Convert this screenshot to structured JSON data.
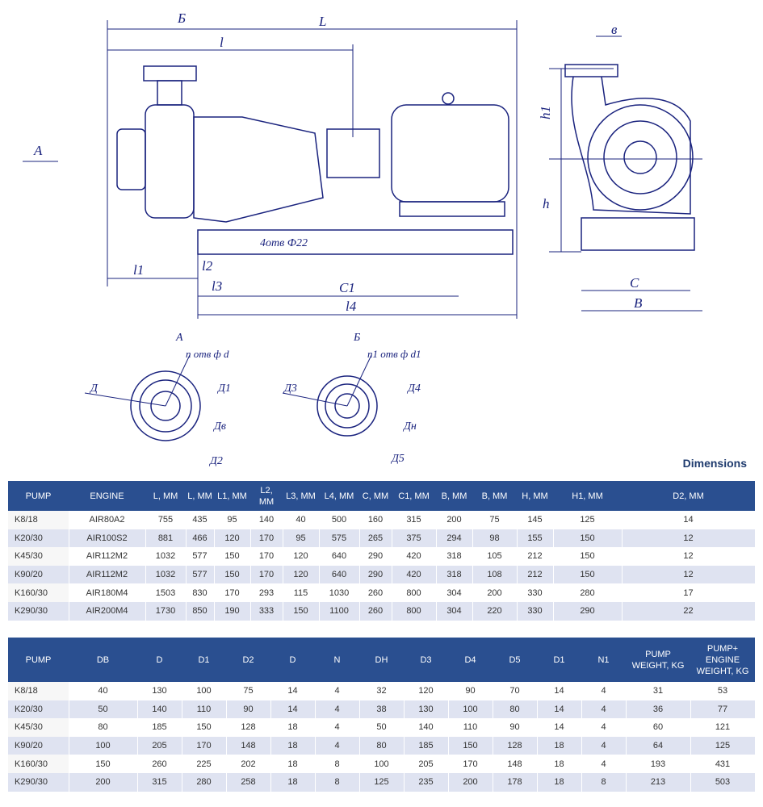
{
  "drawing": {
    "labels": {
      "section_b_mark": "Б",
      "L": "L",
      "l": "l",
      "b": "в",
      "arrow_a": "А",
      "h1": "h1",
      "h": "h",
      "holes": "4отв Ф22",
      "l1": "l1",
      "l2": "l2",
      "l3": "l3",
      "C1": "C1",
      "l4": "l4",
      "C": "C",
      "B": "B",
      "view_a": "А",
      "view_b": "Б",
      "n_holes_d": "n отв ф d",
      "D": "Д",
      "D1": "Д1",
      "D8": "Дв",
      "D2": "Д2",
      "n1_holes_d1": "n1 отв ф d1",
      "D3": "Д3",
      "D4": "Д4",
      "DH": "Дн",
      "D5": "Д5"
    }
  },
  "title": "Dimensions",
  "table1": {
    "headers": [
      "PUMP",
      "ENGINE",
      "L, MM",
      "L, MM",
      "L1, MM",
      "L2, MM",
      "L3, MM",
      "L4, MM",
      "C, MM",
      "C1, MM",
      "B, MM",
      "B, MM",
      "H, MM",
      "H1, MM",
      "D2, MM"
    ],
    "rows": [
      [
        "K8/18",
        "AIR80A2",
        "755",
        "435",
        "95",
        "140",
        "40",
        "500",
        "160",
        "315",
        "200",
        "75",
        "145",
        "125",
        "14"
      ],
      [
        "K20/30",
        "AIR100S2",
        "881",
        "466",
        "120",
        "170",
        "95",
        "575",
        "265",
        "375",
        "294",
        "98",
        "155",
        "150",
        "12"
      ],
      [
        "K45/30",
        "AIR112M2",
        "1032",
        "577",
        "150",
        "170",
        "120",
        "640",
        "290",
        "420",
        "318",
        "105",
        "212",
        "150",
        "12"
      ],
      [
        "K90/20",
        "AIR112M2",
        "1032",
        "577",
        "150",
        "170",
        "120",
        "640",
        "290",
        "420",
        "318",
        "108",
        "212",
        "150",
        "12"
      ],
      [
        "K160/30",
        "AIR180M4",
        "1503",
        "830",
        "170",
        "293",
        "115",
        "1030",
        "260",
        "800",
        "304",
        "200",
        "330",
        "280",
        "17"
      ],
      [
        "K290/30",
        "AIR200M4",
        "1730",
        "850",
        "190",
        "333",
        "150",
        "1100",
        "260",
        "800",
        "304",
        "220",
        "330",
        "290",
        "22"
      ]
    ]
  },
  "table2": {
    "headers": [
      "PUMP",
      "DB",
      "D",
      "D1",
      "D2",
      "D",
      "N",
      "DH",
      "D3",
      "D4",
      "D5",
      "D1",
      "N1",
      "PUMP WEIGHT, KG",
      "PUMP+ ENGINE WEIGHT, KG"
    ],
    "rows": [
      [
        "K8/18",
        "40",
        "130",
        "100",
        "75",
        "14",
        "4",
        "32",
        "120",
        "90",
        "70",
        "14",
        "4",
        "31",
        "53"
      ],
      [
        "K20/30",
        "50",
        "140",
        "110",
        "90",
        "14",
        "4",
        "38",
        "130",
        "100",
        "80",
        "14",
        "4",
        "36",
        "77"
      ],
      [
        "K45/30",
        "80",
        "185",
        "150",
        "128",
        "18",
        "4",
        "50",
        "140",
        "110",
        "90",
        "14",
        "4",
        "60",
        "121"
      ],
      [
        "K90/20",
        "100",
        "205",
        "170",
        "148",
        "18",
        "4",
        "80",
        "185",
        "150",
        "128",
        "18",
        "4",
        "64",
        "125"
      ],
      [
        "K160/30",
        "150",
        "260",
        "225",
        "202",
        "18",
        "8",
        "100",
        "205",
        "170",
        "148",
        "18",
        "4",
        "193",
        "431"
      ],
      [
        "K290/30",
        "200",
        "315",
        "280",
        "258",
        "18",
        "8",
        "125",
        "235",
        "200",
        "178",
        "18",
        "8",
        "213",
        "503"
      ]
    ]
  }
}
